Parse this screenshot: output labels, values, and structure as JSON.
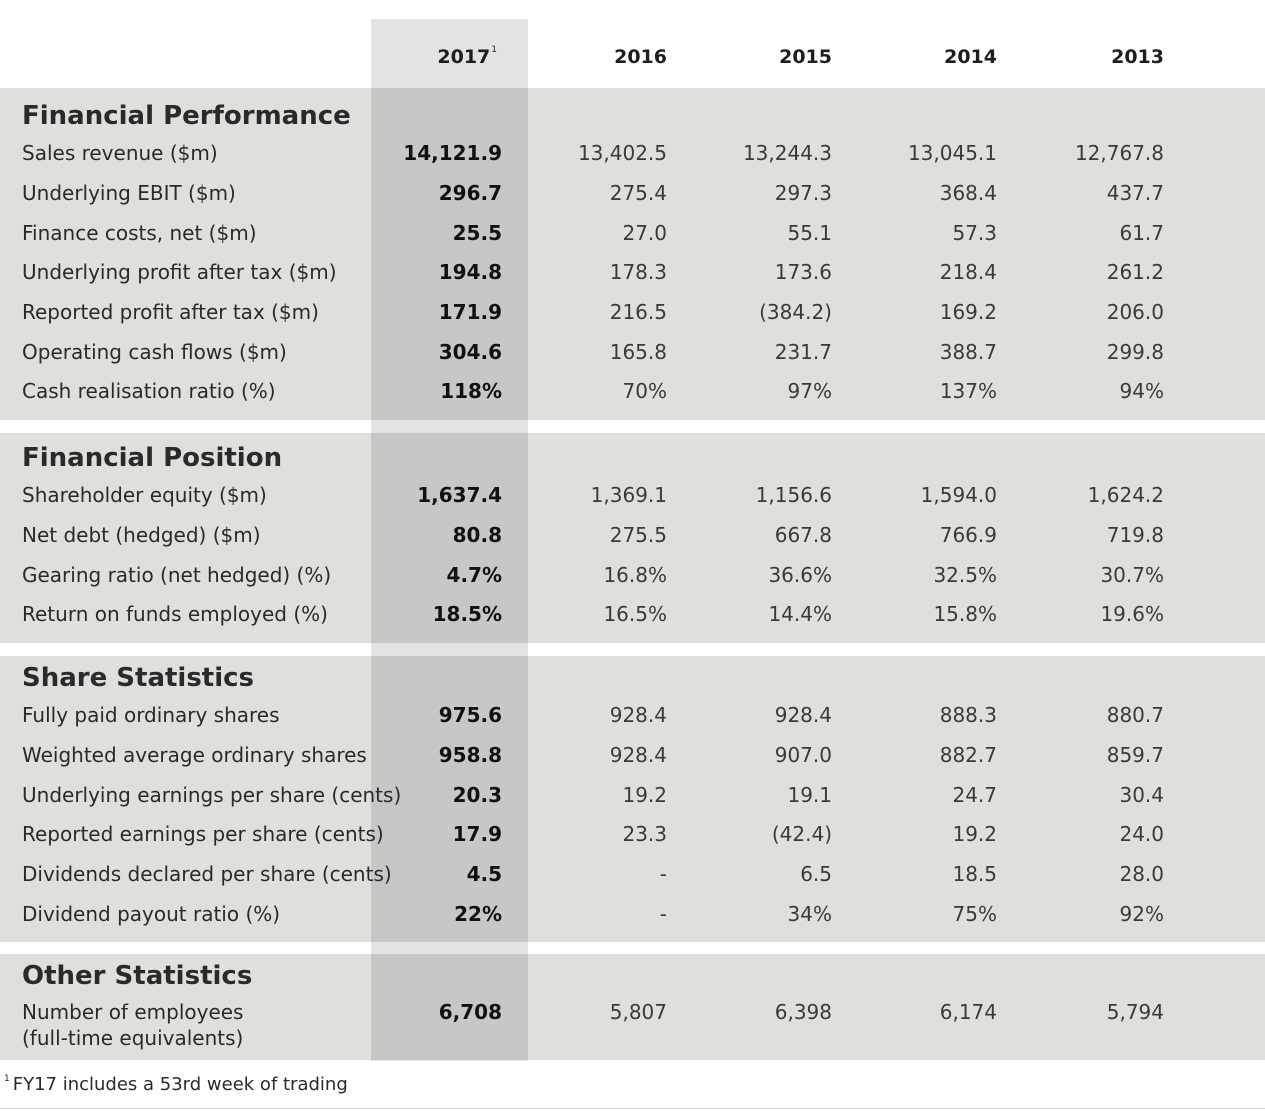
{
  "header": {
    "years": [
      "2017",
      "2016",
      "2015",
      "2014",
      "2013"
    ],
    "footnote_marker": "1"
  },
  "sections": [
    {
      "title": "Financial Performance",
      "rows": [
        {
          "label": "Sales revenue ($m)",
          "values": [
            "14,121.9",
            "13,402.5",
            "13,244.3",
            "13,045.1",
            "12,767.8"
          ]
        },
        {
          "label": "Underlying EBIT ($m)",
          "values": [
            "296.7",
            "275.4",
            "297.3",
            "368.4",
            "437.7"
          ]
        },
        {
          "label": "Finance costs, net ($m)",
          "values": [
            "25.5",
            "27.0",
            "55.1",
            "57.3",
            "61.7"
          ]
        },
        {
          "label": "Underlying profit after tax ($m)",
          "values": [
            "194.8",
            "178.3",
            "173.6",
            "218.4",
            "261.2"
          ]
        },
        {
          "label": "Reported profit after tax ($m)",
          "values": [
            "171.9",
            "216.5",
            "(384.2)",
            "169.2",
            "206.0"
          ]
        },
        {
          "label": "Operating cash flows ($m)",
          "values": [
            "304.6",
            "165.8",
            "231.7",
            "388.7",
            "299.8"
          ]
        },
        {
          "label": "Cash realisation ratio (%)",
          "values": [
            "118%",
            "70%",
            "97%",
            "137%",
            "94%"
          ]
        }
      ]
    },
    {
      "title": "Financial Position",
      "rows": [
        {
          "label": "Shareholder equity ($m)",
          "values": [
            "1,637.4",
            "1,369.1",
            "1,156.6",
            "1,594.0",
            "1,624.2"
          ]
        },
        {
          "label": "Net debt (hedged) ($m)",
          "values": [
            "80.8",
            "275.5",
            "667.8",
            "766.9",
            "719.8"
          ]
        },
        {
          "label": "Gearing ratio (net hedged) (%)",
          "values": [
            "4.7%",
            "16.8%",
            "36.6%",
            "32.5%",
            "30.7%"
          ]
        },
        {
          "label": "Return on funds employed (%)",
          "values": [
            "18.5%",
            "16.5%",
            "14.4%",
            "15.8%",
            "19.6%"
          ]
        }
      ]
    },
    {
      "title": "Share Statistics",
      "rows": [
        {
          "label": "Fully paid ordinary shares",
          "values": [
            "975.6",
            "928.4",
            "928.4",
            "888.3",
            "880.7"
          ]
        },
        {
          "label": "Weighted average ordinary shares",
          "values": [
            "958.8",
            "928.4",
            "907.0",
            "882.7",
            "859.7"
          ]
        },
        {
          "label": "Underlying earnings per share (cents)",
          "values": [
            "20.3",
            "19.2",
            "19.1",
            "24.7",
            "30.4"
          ]
        },
        {
          "label": "Reported earnings per share (cents)",
          "values": [
            "17.9",
            "23.3",
            "(42.4)",
            "19.2",
            "24.0"
          ]
        },
        {
          "label": "Dividends declared per share (cents)",
          "values": [
            "4.5",
            "-",
            "6.5",
            "18.5",
            "28.0"
          ]
        },
        {
          "label": "Dividend payout ratio (%)",
          "values": [
            "22%",
            "-",
            "34%",
            "75%",
            "92%"
          ]
        }
      ]
    },
    {
      "title": "Other Statistics",
      "rows": [
        {
          "label": "Number of employees",
          "label2": "(full-time equivalents)",
          "values": [
            "6,708",
            "5,807",
            "6,398",
            "6,174",
            "5,794"
          ]
        }
      ]
    }
  ],
  "footnote": {
    "marker": "1",
    "text": "FY17 includes a 53rd week of trading"
  },
  "colors": {
    "section_bg": "#e0dfdc",
    "highlight_column": "#c8c7c5",
    "highlight_header": "#e3e3e5"
  }
}
